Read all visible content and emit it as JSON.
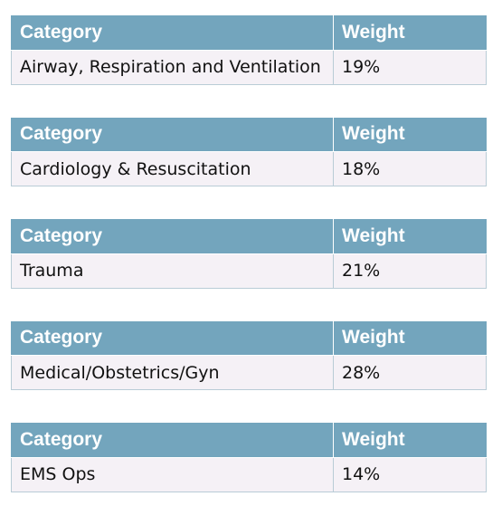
{
  "columns": {
    "category": "Category",
    "weight": "Weight"
  },
  "tables": [
    {
      "category": "Airway, Respiration and Ventilation",
      "weight": "19%"
    },
    {
      "category": "Cardiology & Resuscitation",
      "weight": "18%"
    },
    {
      "category": "Trauma",
      "weight": "21%"
    },
    {
      "category": "Medical/Obstetrics/Gyn",
      "weight": "28%"
    },
    {
      "category": "EMS Ops",
      "weight": "14%"
    }
  ],
  "colors": {
    "header_bg": "#73a5bd",
    "header_text": "#ffffff",
    "cell_bg": "#f5f1f6",
    "cell_border": "#b9ccd6"
  }
}
